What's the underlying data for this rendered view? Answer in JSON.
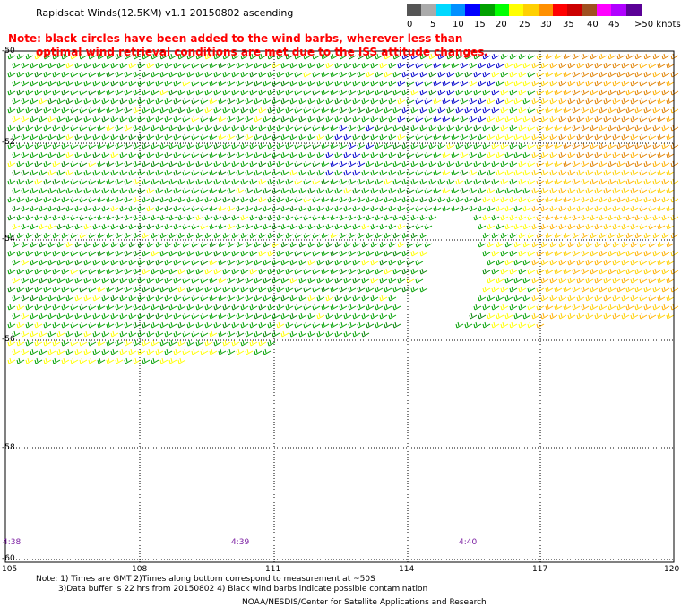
{
  "title": "Rapidscat Winds(12.5KM) v1.1 20150802 ascending",
  "note_line1": "Note: black circles have been added to the wind barbs, wherever less than",
  "note_line2": "optimal wind retrieval conditions are met due to the ISS attitude changes.",
  "legend": {
    "labels": [
      "0",
      "5",
      "10",
      "15",
      "20",
      "25",
      "30",
      "35",
      "40",
      "45",
      ">50 knots"
    ],
    "colors": [
      "#555555",
      "#aaaaaa",
      "#00d8ff",
      "#0090ff",
      "#0000ff",
      "#00a000",
      "#00ff00",
      "#ffff00",
      "#ffd000",
      "#ff9000",
      "#ff0000",
      "#cc0000",
      "#a05020",
      "#ff00ff",
      "#b000ff",
      "#5a0096"
    ]
  },
  "map": {
    "lat_labels": [
      "-50",
      "-52",
      "-54",
      "-56",
      "-58",
      "-60"
    ],
    "lon_labels": [
      "105",
      "108",
      "111",
      "114",
      "117",
      "120"
    ],
    "time_labels": [
      "4:38",
      "4:39",
      "4:40"
    ]
  },
  "footnote_line1": "Note: 1) Times are GMT 2)Times along bottom correspond to measurement at ~50S",
  "footnote_line2": "3)Data buffer is 22 hrs from 20150802 4) Black wind barbs indicate possible contamination",
  "credit": "NOAA/NESDIS/Center for Satellite Applications and Research"
}
